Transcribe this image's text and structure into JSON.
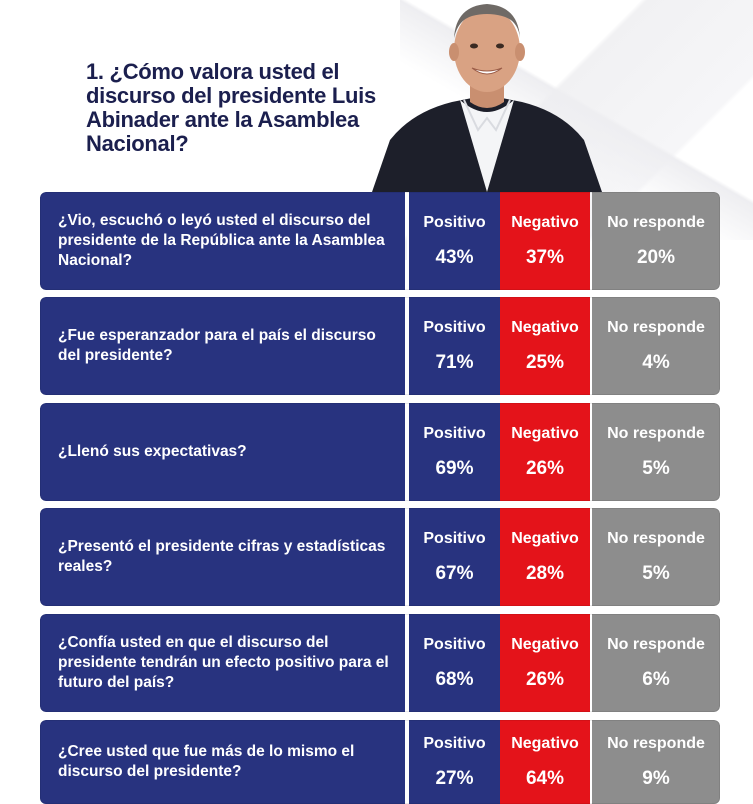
{
  "title": "1. ¿Cómo valora usted el discurso del presidente Luis Abinader ante la Asamblea Nacional?",
  "labels": {
    "positive": "Positivo",
    "negative": "Negativo",
    "no_answer": "No responde"
  },
  "colors": {
    "positive": "#28337f",
    "negative": "#e4131a",
    "no_answer": "#8d8d8d"
  },
  "rows": [
    {
      "question": "¿Vio, escuchó o leyó usted el discurso del presidente de la República ante la Asamblea Nacional?",
      "positive": "43%",
      "negative": "37%",
      "no_answer": "20%"
    },
    {
      "question": "¿Fue esperanzador para el país el discurso del presidente?",
      "positive": "71%",
      "negative": "25%",
      "no_answer": "4%"
    },
    {
      "question": "¿Llenó sus expectativas?",
      "positive": "69%",
      "negative": "26%",
      "no_answer": "5%"
    },
    {
      "question": "¿Presentó el presidente cifras y estadísticas reales?",
      "positive": "67%",
      "negative": "28%",
      "no_answer": "5%"
    },
    {
      "question": "¿Confía usted en que el discurso del presidente tendrán un efecto positivo para el futuro del país?",
      "positive": "68%",
      "negative": "26%",
      "no_answer": "6%"
    },
    {
      "question": "¿Cree usted que fue más de lo mismo el discurso del presidente?",
      "positive": "27%",
      "negative": "64%",
      "no_answer": "9%"
    }
  ],
  "chart_data": {
    "type": "table",
    "title": "1. ¿Cómo valora usted el discurso del presidente Luis Abinader ante la Asamblea Nacional?",
    "columns": [
      "Positivo",
      "Negativo",
      "No responde"
    ],
    "categories": [
      "¿Vio, escuchó o leyó usted el discurso del presidente de la República ante la Asamblea Nacional?",
      "¿Fue esperanzador para el país el discurso del presidente?",
      "¿Llenó sus expectativas?",
      "¿Presentó el presidente cifras y estadísticas reales?",
      "¿Confía usted en que el discurso del presidente tendrán un efecto positivo para el futuro del país?",
      "¿Cree usted que fue más de lo mismo el discurso del presidente?"
    ],
    "series": [
      {
        "name": "Positivo",
        "values": [
          43,
          71,
          69,
          67,
          68,
          27
        ]
      },
      {
        "name": "Negativo",
        "values": [
          37,
          25,
          26,
          28,
          26,
          64
        ]
      },
      {
        "name": "No responde",
        "values": [
          20,
          4,
          5,
          5,
          6,
          9
        ]
      }
    ]
  }
}
